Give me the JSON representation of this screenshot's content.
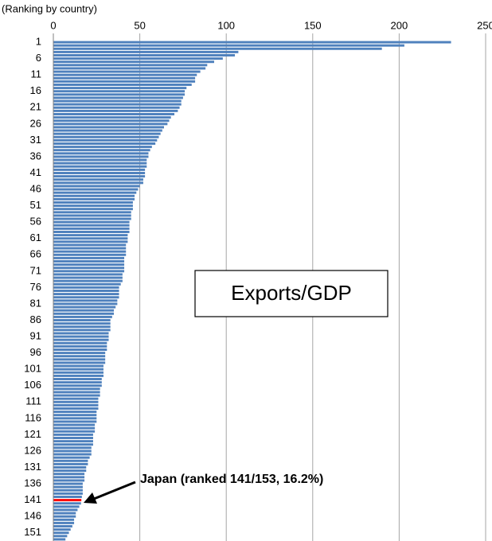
{
  "chart_data": {
    "type": "barh",
    "axis_label": "(Ranking by country)",
    "box_label": "Exports/GDP",
    "annotation": "Japan (ranked 141/153, 16.2%)",
    "color": "#4f81bd",
    "highlight": {
      "index": 140,
      "color": "#ff0000"
    },
    "xlim": [
      0,
      250
    ],
    "xticks": [
      0,
      50,
      100,
      150,
      200,
      250
    ],
    "grid": true,
    "categories": [
      "1",
      null,
      null,
      null,
      null,
      "6",
      null,
      null,
      null,
      null,
      "11",
      null,
      null,
      null,
      null,
      "16",
      null,
      null,
      null,
      null,
      "21",
      null,
      null,
      null,
      null,
      "26",
      null,
      null,
      null,
      null,
      "31",
      null,
      null,
      null,
      null,
      "36",
      null,
      null,
      null,
      null,
      "41",
      null,
      null,
      null,
      null,
      "46",
      null,
      null,
      null,
      null,
      "51",
      null,
      null,
      null,
      null,
      "56",
      null,
      null,
      null,
      null,
      "61",
      null,
      null,
      null,
      null,
      "66",
      null,
      null,
      null,
      null,
      "71",
      null,
      null,
      null,
      null,
      "76",
      null,
      null,
      null,
      null,
      "81",
      null,
      null,
      null,
      null,
      "86",
      null,
      null,
      null,
      null,
      "91",
      null,
      null,
      null,
      null,
      "96",
      null,
      null,
      null,
      null,
      "101",
      null,
      null,
      null,
      null,
      "106",
      null,
      null,
      null,
      null,
      "111",
      null,
      null,
      null,
      null,
      "116",
      null,
      null,
      null,
      null,
      "121",
      null,
      null,
      null,
      null,
      "126",
      null,
      null,
      null,
      null,
      "131",
      null,
      null,
      null,
      null,
      "136",
      null,
      null,
      null,
      null,
      "141",
      null,
      null,
      null,
      null,
      "146",
      null,
      null,
      null,
      null,
      "151",
      null,
      null
    ],
    "values": [
      230,
      203,
      190,
      107,
      105,
      98,
      93,
      89,
      88,
      85,
      83,
      82,
      82,
      80,
      77,
      76,
      76,
      75,
      74,
      74,
      73,
      72,
      70,
      68,
      67,
      66,
      64,
      63,
      62,
      61,
      60,
      59,
      57,
      56,
      55,
      55,
      54,
      54,
      54,
      53,
      53,
      53,
      52,
      52,
      50,
      49,
      48,
      47,
      47,
      46,
      46,
      46,
      45,
      45,
      45,
      44,
      44,
      44,
      44,
      43,
      43,
      43,
      42,
      42,
      42,
      42,
      41,
      41,
      41,
      41,
      41,
      40,
      40,
      40,
      39,
      38,
      38,
      38,
      38,
      37,
      37,
      36,
      35,
      35,
      34,
      33,
      33,
      33,
      33,
      32,
      32,
      32,
      31,
      31,
      31,
      30,
      30,
      30,
      30,
      29,
      29,
      29,
      29,
      28,
      28,
      28,
      27,
      27,
      27,
      26,
      26,
      26,
      26,
      25,
      25,
      25,
      25,
      24,
      24,
      24,
      23,
      23,
      23,
      23,
      22,
      22,
      22,
      21,
      20,
      20,
      19,
      19,
      18,
      18,
      18,
      17,
      17,
      17,
      17,
      16.5,
      16.2,
      16,
      15,
      14,
      13,
      13,
      12,
      12,
      11,
      10,
      9,
      8,
      7
    ]
  }
}
